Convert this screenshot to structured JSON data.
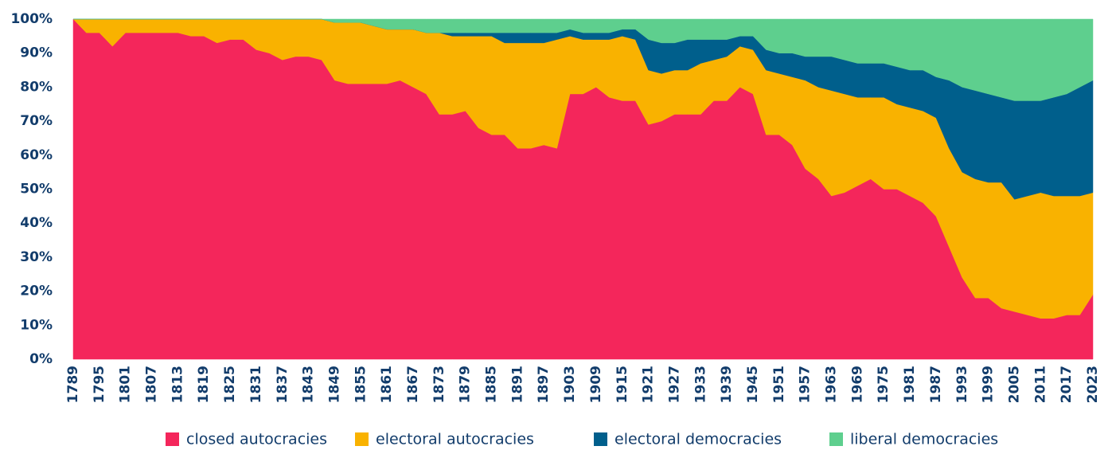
{
  "chart_data": {
    "type": "stacked_area",
    "x": [
      1789,
      1792,
      1795,
      1798,
      1801,
      1804,
      1807,
      1810,
      1813,
      1816,
      1819,
      1822,
      1825,
      1828,
      1831,
      1834,
      1837,
      1840,
      1843,
      1846,
      1849,
      1852,
      1855,
      1858,
      1861,
      1864,
      1867,
      1870,
      1873,
      1876,
      1879,
      1882,
      1885,
      1888,
      1891,
      1894,
      1897,
      1900,
      1903,
      1906,
      1909,
      1912,
      1915,
      1918,
      1921,
      1924,
      1927,
      1930,
      1933,
      1936,
      1939,
      1942,
      1945,
      1948,
      1951,
      1954,
      1957,
      1960,
      1963,
      1966,
      1969,
      1972,
      1975,
      1978,
      1981,
      1984,
      1987,
      1990,
      1993,
      1996,
      1999,
      2002,
      2005,
      2008,
      2011,
      2014,
      2017,
      2020,
      2023
    ],
    "series": [
      {
        "name": "closed autocracies",
        "color": "#f4265b",
        "values": [
          100,
          96,
          96,
          92,
          96,
          96,
          96,
          96,
          96,
          95,
          95,
          93,
          94,
          94,
          91,
          90,
          88,
          89,
          89,
          88,
          82,
          81,
          81,
          81,
          81,
          82,
          80,
          78,
          72,
          72,
          73,
          68,
          66,
          66,
          62,
          62,
          63,
          62,
          78,
          78,
          80,
          77,
          76,
          76,
          69,
          70,
          72,
          72,
          72,
          76,
          76,
          80,
          78,
          66,
          66,
          63,
          56,
          53,
          48,
          49,
          51,
          53,
          50,
          50,
          48,
          46,
          42,
          33,
          24,
          18,
          18,
          15,
          14,
          13,
          12,
          12,
          13,
          13,
          19
        ]
      },
      {
        "name": "electoral autocracies",
        "color": "#f9b200",
        "values": [
          0,
          4,
          4,
          8,
          4,
          4,
          4,
          4,
          4,
          5,
          5,
          7,
          6,
          6,
          9,
          10,
          12,
          11,
          11,
          12,
          17,
          18,
          18,
          17,
          16,
          15,
          17,
          18,
          24,
          23,
          22,
          27,
          29,
          27,
          31,
          31,
          30,
          32,
          17,
          16,
          14,
          17,
          19,
          18,
          16,
          14,
          13,
          13,
          15,
          12,
          13,
          12,
          13,
          19,
          18,
          20,
          26,
          27,
          31,
          29,
          26,
          24,
          27,
          25,
          26,
          27,
          29,
          29,
          31,
          35,
          34,
          37,
          33,
          35,
          37,
          36,
          35,
          35,
          30
        ]
      },
      {
        "name": "electoral democracies",
        "color": "#005f8c",
        "values": [
          0,
          0,
          0,
          0,
          0,
          0,
          0,
          0,
          0,
          0,
          0,
          0,
          0,
          0,
          0,
          0,
          0,
          0,
          0,
          0,
          0,
          0,
          0,
          0,
          0,
          0,
          0,
          0,
          0,
          1,
          1,
          1,
          1,
          3,
          3,
          3,
          3,
          2,
          2,
          2,
          2,
          2,
          2,
          3,
          9,
          9,
          8,
          9,
          7,
          6,
          5,
          3,
          4,
          6,
          6,
          7,
          7,
          9,
          10,
          10,
          10,
          10,
          10,
          11,
          11,
          12,
          12,
          20,
          25,
          26,
          26,
          25,
          29,
          28,
          27,
          29,
          30,
          32,
          33
        ]
      },
      {
        "name": "liberal democracies",
        "color": "#5ecf8e",
        "values": [
          0,
          0,
          0,
          0,
          0,
          0,
          0,
          0,
          0,
          0,
          0,
          0,
          0,
          0,
          0,
          0,
          0,
          0,
          0,
          0,
          1,
          1,
          1,
          2,
          3,
          3,
          3,
          4,
          4,
          4,
          4,
          4,
          4,
          4,
          4,
          4,
          4,
          4,
          3,
          4,
          4,
          4,
          3,
          3,
          6,
          7,
          7,
          6,
          6,
          6,
          6,
          5,
          5,
          9,
          10,
          10,
          11,
          11,
          11,
          12,
          13,
          13,
          13,
          14,
          15,
          15,
          17,
          18,
          20,
          21,
          22,
          23,
          24,
          24,
          24,
          23,
          22,
          20,
          18
        ]
      }
    ],
    "xlim": [
      1789,
      2023
    ],
    "xticks": [
      1789,
      1795,
      1801,
      1807,
      1813,
      1819,
      1825,
      1831,
      1837,
      1843,
      1849,
      1855,
      1861,
      1867,
      1873,
      1879,
      1885,
      1891,
      1897,
      1903,
      1909,
      1915,
      1921,
      1927,
      1933,
      1939,
      1945,
      1951,
      1957,
      1963,
      1969,
      1975,
      1981,
      1987,
      1993,
      1999,
      2005,
      2011,
      2017,
      2023
    ],
    "ylim": [
      0,
      100
    ],
    "yticks": [
      {
        "value": 0,
        "label": "0%"
      },
      {
        "value": 10,
        "label": "10%"
      },
      {
        "value": 20,
        "label": "20%"
      },
      {
        "value": 30,
        "label": "30%"
      },
      {
        "value": 40,
        "label": "40%"
      },
      {
        "value": 50,
        "label": "50%"
      },
      {
        "value": 60,
        "label": "60%"
      },
      {
        "value": 70,
        "label": "70%"
      },
      {
        "value": 80,
        "label": "80%"
      },
      {
        "value": 90,
        "label": "90%"
      },
      {
        "value": 100,
        "label": "100%"
      }
    ],
    "legend": "bottom"
  }
}
